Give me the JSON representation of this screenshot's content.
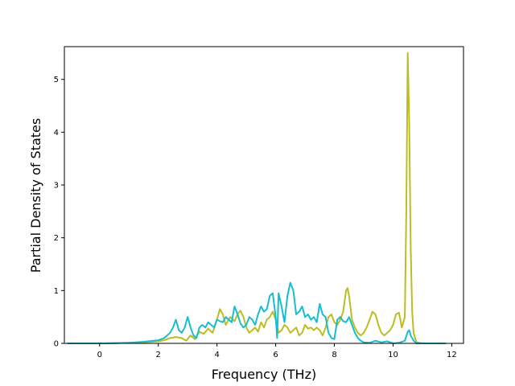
{
  "chart_data": {
    "type": "line",
    "title": "",
    "xlabel": "Frequency (THz)",
    "ylabel": "Partial Density of States",
    "xlim": [
      -1.2,
      12.4
    ],
    "ylim": [
      0,
      5.62
    ],
    "xticks": [
      0,
      2,
      4,
      6,
      8,
      10,
      12
    ],
    "yticks": [
      0,
      1,
      2,
      3,
      4,
      5
    ],
    "grid": false,
    "legend": "none",
    "series": [
      {
        "color": "#bcbd22",
        "x": [
          -1.1,
          0.0,
          0.5,
          1.0,
          1.5,
          2.0,
          2.2,
          2.4,
          2.6,
          2.8,
          2.95,
          3.1,
          3.25,
          3.4,
          3.55,
          3.7,
          3.85,
          4.0,
          4.1,
          4.2,
          4.3,
          4.45,
          4.6,
          4.7,
          4.8,
          4.9,
          5.0,
          5.1,
          5.2,
          5.3,
          5.4,
          5.5,
          5.6,
          5.7,
          5.8,
          5.9,
          6.0,
          6.1,
          6.2,
          6.3,
          6.4,
          6.5,
          6.6,
          6.7,
          6.8,
          6.9,
          7.0,
          7.1,
          7.2,
          7.3,
          7.4,
          7.5,
          7.6,
          7.7,
          7.8,
          7.9,
          8.0,
          8.1,
          8.2,
          8.3,
          8.4,
          8.45,
          8.5,
          8.6,
          8.7,
          8.8,
          8.9,
          9.0,
          9.1,
          9.2,
          9.3,
          9.4,
          9.5,
          9.6,
          9.7,
          9.8,
          9.9,
          10.0,
          10.1,
          10.2,
          10.3,
          10.4,
          10.45,
          10.5,
          10.55,
          10.6,
          10.65,
          10.7,
          10.8,
          11.0,
          11.8
        ],
        "y": [
          0,
          0,
          0.005,
          0.01,
          0.02,
          0.04,
          0.06,
          0.1,
          0.12,
          0.1,
          0.05,
          0.15,
          0.08,
          0.22,
          0.18,
          0.28,
          0.2,
          0.45,
          0.65,
          0.55,
          0.35,
          0.5,
          0.42,
          0.55,
          0.62,
          0.5,
          0.3,
          0.2,
          0.25,
          0.3,
          0.22,
          0.4,
          0.3,
          0.45,
          0.5,
          0.6,
          0.45,
          0.2,
          0.25,
          0.35,
          0.3,
          0.2,
          0.25,
          0.3,
          0.15,
          0.2,
          0.35,
          0.28,
          0.3,
          0.25,
          0.3,
          0.25,
          0.15,
          0.3,
          0.5,
          0.55,
          0.4,
          0.35,
          0.45,
          0.6,
          1.0,
          1.05,
          0.9,
          0.45,
          0.3,
          0.2,
          0.15,
          0.2,
          0.3,
          0.45,
          0.6,
          0.55,
          0.35,
          0.2,
          0.15,
          0.2,
          0.25,
          0.35,
          0.55,
          0.58,
          0.3,
          0.5,
          2.5,
          5.5,
          4.2,
          1.8,
          0.6,
          0.2,
          0.02,
          0,
          0
        ]
      },
      {
        "color": "#17becf",
        "x": [
          -1.1,
          0.0,
          0.5,
          1.0,
          1.5,
          2.0,
          2.2,
          2.4,
          2.5,
          2.6,
          2.7,
          2.8,
          2.9,
          3.0,
          3.1,
          3.2,
          3.3,
          3.4,
          3.5,
          3.6,
          3.7,
          3.8,
          3.9,
          4.0,
          4.1,
          4.2,
          4.3,
          4.4,
          4.5,
          4.6,
          4.7,
          4.8,
          4.9,
          5.0,
          5.1,
          5.2,
          5.3,
          5.4,
          5.5,
          5.6,
          5.7,
          5.8,
          5.9,
          6.0,
          6.05,
          6.1,
          6.2,
          6.3,
          6.4,
          6.5,
          6.6,
          6.7,
          6.8,
          6.9,
          7.0,
          7.1,
          7.2,
          7.3,
          7.4,
          7.5,
          7.6,
          7.7,
          7.8,
          7.9,
          8.0,
          8.1,
          8.2,
          8.3,
          8.4,
          8.5,
          8.6,
          8.7,
          8.8,
          8.9,
          9.0,
          9.2,
          9.4,
          9.6,
          9.8,
          10.0,
          10.2,
          10.4,
          10.5,
          10.55,
          10.6,
          10.7,
          10.8,
          11.0,
          11.8
        ],
        "y": [
          0,
          0,
          0.005,
          0.01,
          0.03,
          0.06,
          0.1,
          0.2,
          0.3,
          0.45,
          0.25,
          0.2,
          0.3,
          0.5,
          0.3,
          0.15,
          0.1,
          0.3,
          0.35,
          0.3,
          0.4,
          0.35,
          0.3,
          0.45,
          0.42,
          0.4,
          0.5,
          0.45,
          0.4,
          0.7,
          0.55,
          0.38,
          0.3,
          0.35,
          0.5,
          0.45,
          0.35,
          0.55,
          0.7,
          0.6,
          0.65,
          0.9,
          0.95,
          0.5,
          0.1,
          0.95,
          0.7,
          0.4,
          0.9,
          1.15,
          1.0,
          0.55,
          0.6,
          0.7,
          0.5,
          0.55,
          0.45,
          0.5,
          0.4,
          0.75,
          0.55,
          0.5,
          0.2,
          0.1,
          0.08,
          0.45,
          0.5,
          0.42,
          0.4,
          0.5,
          0.35,
          0.2,
          0.1,
          0.05,
          0.02,
          0.01,
          0.05,
          0.02,
          0.04,
          0.0,
          0.01,
          0.05,
          0.22,
          0.25,
          0.15,
          0.05,
          0.0,
          0,
          0
        ]
      }
    ]
  }
}
